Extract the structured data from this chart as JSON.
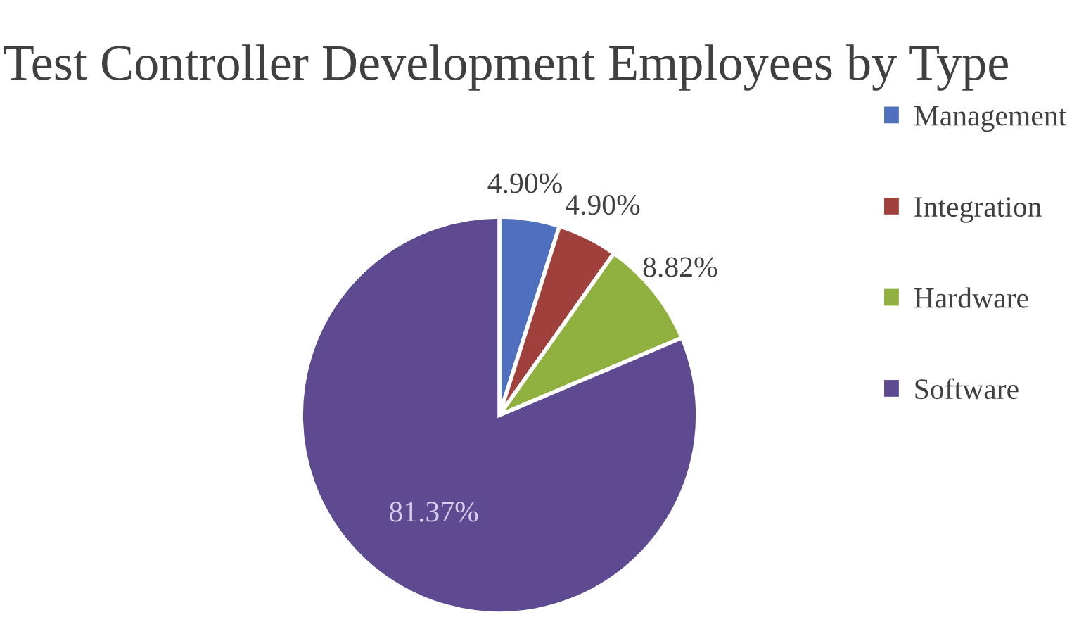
{
  "chart_data": {
    "type": "pie",
    "title": "Test Controller Development Employees by Type",
    "categories": [
      "Management",
      "Integration",
      "Hardware",
      "Software"
    ],
    "values": [
      4.9,
      4.9,
      8.82,
      81.37
    ],
    "value_labels": [
      "4.90%",
      "4.90%",
      "8.82%",
      "81.37%"
    ],
    "colors": [
      "#4f6fbf",
      "#a0403c",
      "#90b040",
      "#5e4a91"
    ],
    "legend": "right"
  }
}
